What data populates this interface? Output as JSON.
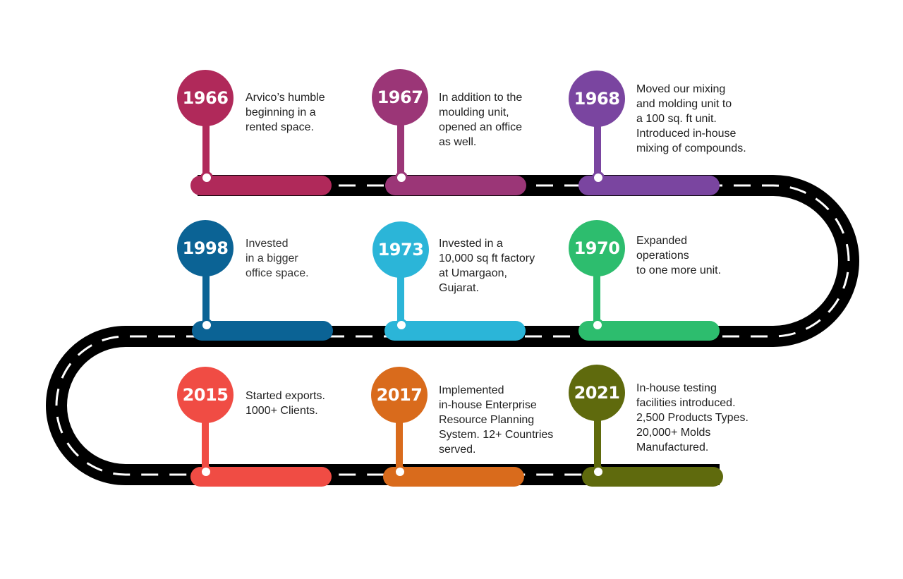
{
  "milestones": [
    {
      "year": "1966",
      "text": "Arvico’s humble\nbeginning in a\nrented space.",
      "color": "#b0295a"
    },
    {
      "year": "1967",
      "text": "In addition to the\nmoulding unit,\nopened an office\nas well.",
      "color": "#9b3677"
    },
    {
      "year": "1968",
      "text": "Moved our mixing\nand molding unit to\na 100 sq. ft unit.\nIntroduced in-house\nmixing of compounds.",
      "color": "#7a45a0"
    },
    {
      "year": "1970",
      "text": "Expanded\noperations\nto one more unit.",
      "color": "#2dbd6e"
    },
    {
      "year": "1973",
      "text": "Invested in a\n10,000 sq ft factory\nat Umargaon,\nGujarat.",
      "color": "#2bb5d8"
    },
    {
      "year": "1998",
      "text": "Invested\nin a bigger\noffice space.",
      "color": "#0b6395"
    },
    {
      "year": "2015",
      "text": "Started exports.\n1000+ Clients.",
      "color": "#f04c44"
    },
    {
      "year": "2017",
      "text": "Implemented\nin-house Enterprise\nResource Planning\nSystem. 12+ Countries\nserved.",
      "color": "#d96b1c"
    },
    {
      "year": "2021",
      "text": "In-house testing\nfacilities introduced.\n2,500 Products Types.\n20,000+ Molds\nManufactured.",
      "color": "#5f6a0d"
    }
  ],
  "road_color": "#000000",
  "lane_color": "#ffffff"
}
